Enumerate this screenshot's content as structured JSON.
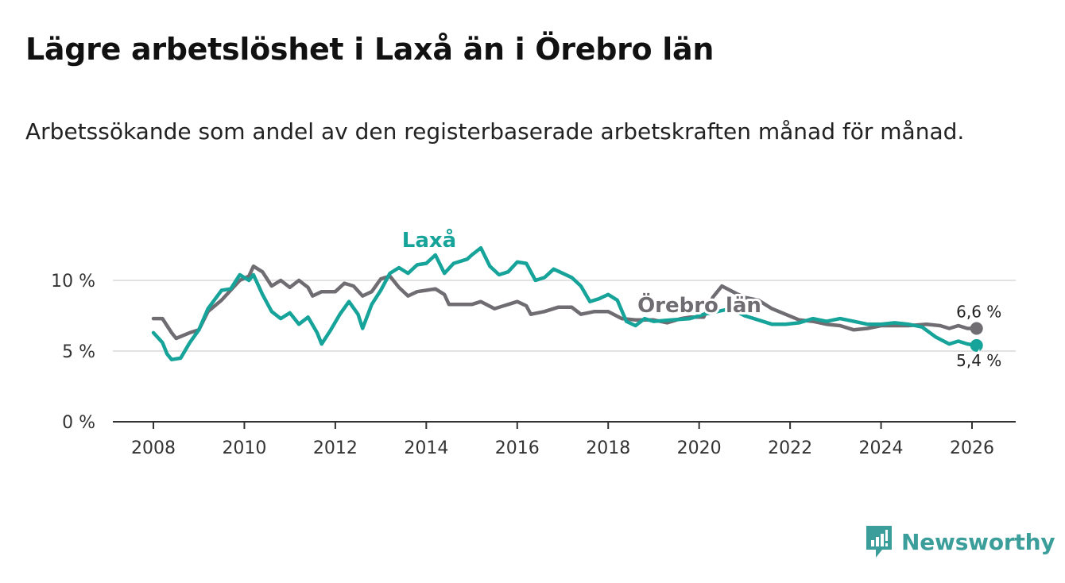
{
  "header": {
    "title": "Lägre arbetslöshet i Laxå än i Örebro län",
    "subtitle": "Arbetssökande som andel av den registerbaserade arbetskraften månad för månad."
  },
  "brand": {
    "name": "Newsworthy",
    "icon": "newsworthy-logo-icon"
  },
  "colors": {
    "laxa": "#16a39a",
    "orebro": "#6f6c72",
    "grid": "#d9d9d9",
    "axis": "#333333",
    "brand": "#3c9e9a"
  },
  "chart_data": {
    "type": "line",
    "title": "Lägre arbetslöshet i Laxå än i Örebro län",
    "xlabel": "",
    "ylabel": "",
    "xlim": [
      2008,
      2027
    ],
    "ylim": [
      0,
      12.5
    ],
    "y_ticks": [
      0,
      5,
      10
    ],
    "y_tick_labels": [
      "0 %",
      "5 %",
      "10 %"
    ],
    "x_ticks": [
      2008,
      2010,
      2012,
      2014,
      2016,
      2018,
      2020,
      2022,
      2024,
      2026
    ],
    "x_tick_labels": [
      "2008",
      "2010",
      "2012",
      "2014",
      "2016",
      "2018",
      "2020",
      "2022",
      "2024",
      "2026"
    ],
    "grid": true,
    "series": [
      {
        "name": "Örebro län",
        "key": "orebro",
        "end_label": "6,6 %",
        "points": [
          [
            2008.0,
            7.3
          ],
          [
            2008.2,
            7.3
          ],
          [
            2008.4,
            6.3
          ],
          [
            2008.5,
            5.9
          ],
          [
            2008.8,
            6.3
          ],
          [
            2009.0,
            6.5
          ],
          [
            2009.2,
            7.8
          ],
          [
            2009.5,
            8.6
          ],
          [
            2009.9,
            10.0
          ],
          [
            2010.1,
            10.3
          ],
          [
            2010.2,
            11.0
          ],
          [
            2010.4,
            10.6
          ],
          [
            2010.6,
            9.6
          ],
          [
            2010.8,
            10.0
          ],
          [
            2011.0,
            9.5
          ],
          [
            2011.2,
            10.0
          ],
          [
            2011.4,
            9.5
          ],
          [
            2011.5,
            8.9
          ],
          [
            2011.7,
            9.2
          ],
          [
            2012.0,
            9.2
          ],
          [
            2012.2,
            9.8
          ],
          [
            2012.4,
            9.6
          ],
          [
            2012.6,
            8.9
          ],
          [
            2012.8,
            9.2
          ],
          [
            2013.0,
            10.1
          ],
          [
            2013.2,
            10.3
          ],
          [
            2013.4,
            9.5
          ],
          [
            2013.6,
            8.9
          ],
          [
            2013.8,
            9.2
          ],
          [
            2014.0,
            9.3
          ],
          [
            2014.2,
            9.4
          ],
          [
            2014.4,
            9.0
          ],
          [
            2014.5,
            8.3
          ],
          [
            2014.8,
            8.3
          ],
          [
            2015.0,
            8.3
          ],
          [
            2015.2,
            8.5
          ],
          [
            2015.5,
            8.0
          ],
          [
            2015.8,
            8.3
          ],
          [
            2016.0,
            8.5
          ],
          [
            2016.2,
            8.2
          ],
          [
            2016.3,
            7.6
          ],
          [
            2016.6,
            7.8
          ],
          [
            2016.9,
            8.1
          ],
          [
            2017.2,
            8.1
          ],
          [
            2017.4,
            7.6
          ],
          [
            2017.7,
            7.8
          ],
          [
            2018.0,
            7.8
          ],
          [
            2018.3,
            7.3
          ],
          [
            2018.6,
            7.2
          ],
          [
            2019.0,
            7.2
          ],
          [
            2019.3,
            7.0
          ],
          [
            2019.6,
            7.3
          ],
          [
            2019.8,
            7.4
          ],
          [
            2020.1,
            7.4
          ],
          [
            2020.3,
            8.8
          ],
          [
            2020.5,
            9.6
          ],
          [
            2020.8,
            9.1
          ],
          [
            2021.0,
            8.8
          ],
          [
            2021.3,
            8.6
          ],
          [
            2021.6,
            8.0
          ],
          [
            2021.9,
            7.6
          ],
          [
            2022.2,
            7.2
          ],
          [
            2022.5,
            7.1
          ],
          [
            2022.8,
            6.9
          ],
          [
            2023.1,
            6.8
          ],
          [
            2023.4,
            6.5
          ],
          [
            2023.7,
            6.6
          ],
          [
            2024.0,
            6.8
          ],
          [
            2024.3,
            6.8
          ],
          [
            2024.6,
            6.8
          ],
          [
            2025.0,
            6.9
          ],
          [
            2025.3,
            6.8
          ],
          [
            2025.5,
            6.6
          ],
          [
            2025.7,
            6.8
          ],
          [
            2025.9,
            6.6
          ],
          [
            2026.1,
            6.6
          ]
        ]
      },
      {
        "name": "Laxå",
        "key": "laxa",
        "end_label": "5,4 %",
        "points": [
          [
            2008.0,
            6.3
          ],
          [
            2008.2,
            5.6
          ],
          [
            2008.3,
            4.8
          ],
          [
            2008.4,
            4.4
          ],
          [
            2008.6,
            4.5
          ],
          [
            2008.8,
            5.6
          ],
          [
            2009.0,
            6.5
          ],
          [
            2009.2,
            8.0
          ],
          [
            2009.5,
            9.3
          ],
          [
            2009.7,
            9.4
          ],
          [
            2009.9,
            10.4
          ],
          [
            2010.1,
            10.0
          ],
          [
            2010.2,
            10.4
          ],
          [
            2010.4,
            9.0
          ],
          [
            2010.6,
            7.8
          ],
          [
            2010.8,
            7.3
          ],
          [
            2011.0,
            7.7
          ],
          [
            2011.2,
            6.9
          ],
          [
            2011.4,
            7.4
          ],
          [
            2011.6,
            6.3
          ],
          [
            2011.7,
            5.5
          ],
          [
            2011.9,
            6.5
          ],
          [
            2012.1,
            7.6
          ],
          [
            2012.3,
            8.5
          ],
          [
            2012.5,
            7.6
          ],
          [
            2012.6,
            6.6
          ],
          [
            2012.8,
            8.3
          ],
          [
            2013.0,
            9.3
          ],
          [
            2013.2,
            10.5
          ],
          [
            2013.4,
            10.9
          ],
          [
            2013.6,
            10.5
          ],
          [
            2013.8,
            11.1
          ],
          [
            2014.0,
            11.2
          ],
          [
            2014.2,
            11.8
          ],
          [
            2014.4,
            10.5
          ],
          [
            2014.6,
            11.2
          ],
          [
            2014.9,
            11.5
          ],
          [
            2015.0,
            11.8
          ],
          [
            2015.2,
            12.3
          ],
          [
            2015.4,
            11.0
          ],
          [
            2015.6,
            10.4
          ],
          [
            2015.8,
            10.6
          ],
          [
            2016.0,
            11.3
          ],
          [
            2016.2,
            11.2
          ],
          [
            2016.4,
            10.0
          ],
          [
            2016.6,
            10.2
          ],
          [
            2016.8,
            10.8
          ],
          [
            2017.0,
            10.5
          ],
          [
            2017.2,
            10.2
          ],
          [
            2017.4,
            9.6
          ],
          [
            2017.6,
            8.5
          ],
          [
            2017.8,
            8.7
          ],
          [
            2018.0,
            9.0
          ],
          [
            2018.2,
            8.6
          ],
          [
            2018.4,
            7.1
          ],
          [
            2018.6,
            6.8
          ],
          [
            2018.8,
            7.3
          ],
          [
            2019.0,
            7.1
          ],
          [
            2019.4,
            7.2
          ],
          [
            2019.8,
            7.3
          ],
          [
            2020.1,
            7.6
          ],
          [
            2020.4,
            7.8
          ],
          [
            2020.7,
            8.0
          ],
          [
            2021.0,
            7.5
          ],
          [
            2021.3,
            7.2
          ],
          [
            2021.6,
            6.9
          ],
          [
            2021.9,
            6.9
          ],
          [
            2022.2,
            7.0
          ],
          [
            2022.5,
            7.3
          ],
          [
            2022.8,
            7.1
          ],
          [
            2023.1,
            7.3
          ],
          [
            2023.4,
            7.1
          ],
          [
            2023.7,
            6.9
          ],
          [
            2024.0,
            6.9
          ],
          [
            2024.3,
            7.0
          ],
          [
            2024.6,
            6.9
          ],
          [
            2024.9,
            6.7
          ],
          [
            2025.2,
            6.0
          ],
          [
            2025.5,
            5.5
          ],
          [
            2025.7,
            5.7
          ],
          [
            2025.9,
            5.5
          ],
          [
            2026.1,
            5.4
          ]
        ]
      }
    ]
  }
}
